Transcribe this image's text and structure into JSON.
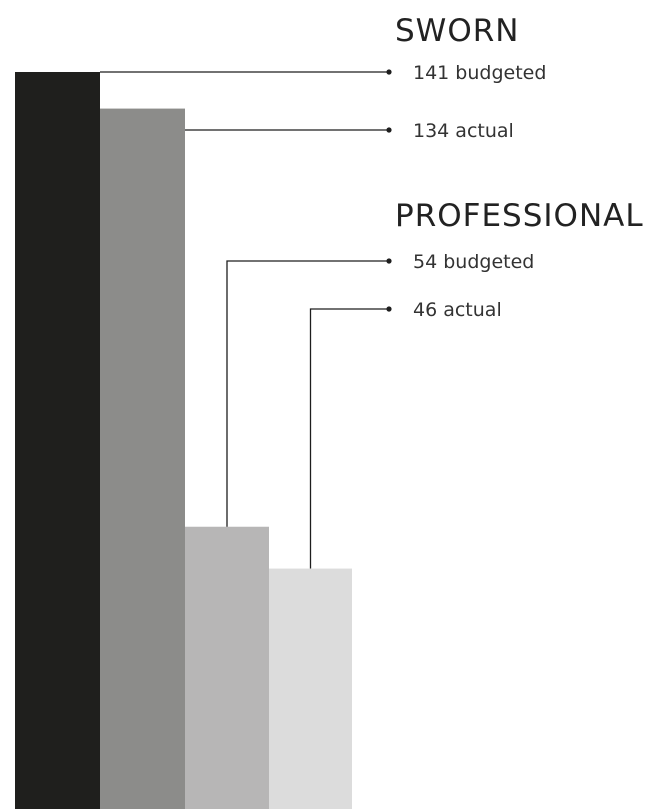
{
  "chart_data": {
    "type": "bar",
    "groups": [
      {
        "title": "SWORN",
        "items": [
          {
            "value": 141,
            "label": "budgeted",
            "color": "#1f1f1d"
          },
          {
            "value": 134,
            "label": "actual",
            "color": "#8c8c8a"
          }
        ]
      },
      {
        "title": "PROFESSIONAL",
        "items": [
          {
            "value": 54,
            "label": "budgeted",
            "color": "#b7b6b6"
          },
          {
            "value": 46,
            "label": "actual",
            "color": "#dcdcdc"
          }
        ]
      }
    ],
    "ylim": [
      0,
      141
    ],
    "grid": false,
    "legend": "annotations-right"
  }
}
